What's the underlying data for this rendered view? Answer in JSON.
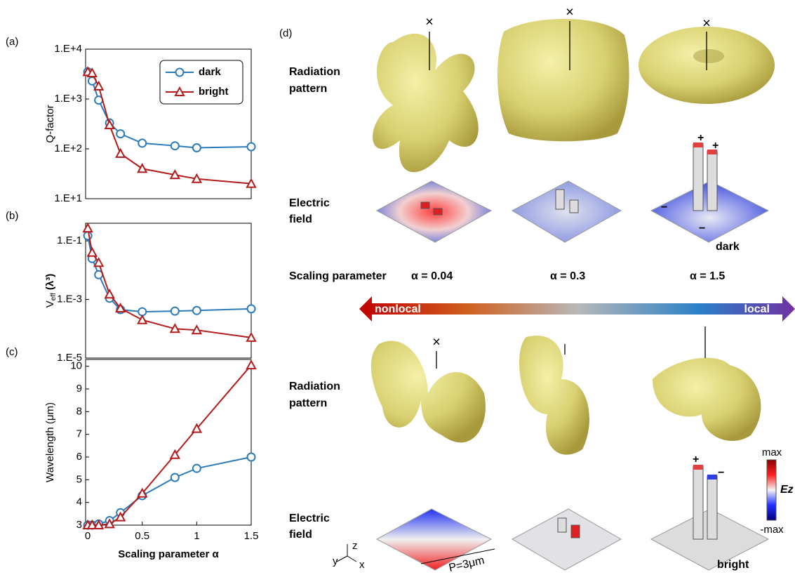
{
  "chart_data": [
    {
      "type": "line",
      "panel_label": "(a)",
      "y_label": "Q-factor",
      "x": [
        0,
        0.04,
        0.1,
        0.2,
        0.3,
        0.5,
        0.8,
        1.0,
        1.5
      ],
      "series": [
        {
          "name": "dark",
          "color": "#2b7bba",
          "marker": "circle",
          "values": [
            3500,
            2300,
            950,
            330,
            200,
            130,
            115,
            105,
            110
          ]
        },
        {
          "name": "bright",
          "color": "#b31b1b",
          "marker": "triangle",
          "values": [
            3500,
            3300,
            1800,
            300,
            80,
            40,
            30,
            25,
            20
          ]
        }
      ],
      "xlim": [
        -0.02,
        1.5
      ],
      "ylim": [
        10,
        10000
      ],
      "y_log": true,
      "yticks": [
        {
          "value": 10,
          "label": "1.E+1"
        },
        {
          "value": 100,
          "label": "1.E+2"
        },
        {
          "value": 1000,
          "label": "1.E+3"
        },
        {
          "value": 10000,
          "label": "1.E+4"
        }
      ],
      "legend": "upper right"
    },
    {
      "type": "line",
      "panel_label": "(b)",
      "y_label": {
        "main": "V",
        "sub": "eff",
        "rest": " (λ³)"
      },
      "x": [
        0,
        0.04,
        0.1,
        0.2,
        0.3,
        0.5,
        0.8,
        1.0,
        1.5
      ],
      "series": [
        {
          "color": "#2b7bba",
          "marker": "circle",
          "values": [
            0.15,
            0.025,
            0.007,
            0.0011,
            0.00045,
            0.00038,
            0.0004,
            0.00042,
            0.00048
          ]
        },
        {
          "color": "#b31b1b",
          "marker": "triangle",
          "values": [
            0.27,
            0.04,
            0.018,
            0.0015,
            0.0005,
            0.0002,
            0.0001,
            9e-05,
            5e-05
          ]
        }
      ],
      "xlim": [
        -0.02,
        1.5
      ],
      "ylim": [
        1e-05,
        0.4
      ],
      "y_log": true,
      "yticks": [
        {
          "value": 1e-05,
          "label": "1.E-5"
        },
        {
          "value": 0.001,
          "label": "1.E-3"
        },
        {
          "value": 0.1,
          "label": "1.E-1"
        }
      ]
    },
    {
      "type": "line",
      "panel_label": "(c)",
      "y_label": "Wavelength (μm)",
      "x_label": "Scaling parameter α",
      "x": [
        0,
        0.04,
        0.1,
        0.2,
        0.3,
        0.5,
        0.8,
        1.0,
        1.5
      ],
      "series": [
        {
          "color": "#2b7bba",
          "marker": "circle",
          "values": [
            3.0,
            3.0,
            3.05,
            3.2,
            3.55,
            4.3,
            5.1,
            5.5,
            6.0
          ]
        },
        {
          "color": "#b31b1b",
          "marker": "triangle",
          "values": [
            3.0,
            3.0,
            3.0,
            3.05,
            3.35,
            4.4,
            6.1,
            7.25,
            10.05
          ]
        }
      ],
      "xlim": [
        -0.02,
        1.5
      ],
      "ylim": [
        3,
        10.3
      ],
      "y_log": false,
      "xticks": [
        0,
        0.5,
        1,
        1.5
      ],
      "yticks": [
        3,
        4,
        5,
        6,
        7,
        8,
        9,
        10
      ]
    }
  ],
  "panel_d": {
    "label": "(d)",
    "upper": {
      "radiation_pattern": [
        "Radiation",
        "pattern"
      ],
      "electric_field": [
        "Electric",
        "field"
      ],
      "mode": "dark",
      "signs": [
        "+",
        "+",
        "−",
        "−"
      ]
    },
    "scaling": {
      "label": "Scaling parameter",
      "alphas": [
        "α = 0.04",
        "α = 0.3",
        "α = 1.5"
      ]
    },
    "arrow": {
      "left": "nonlocal",
      "right": "local"
    },
    "lower": {
      "radiation_pattern": [
        "Radiation",
        "pattern"
      ],
      "electric_field": [
        "Electric",
        "field"
      ],
      "mode": "bright",
      "signs": [
        "+",
        "−"
      ]
    },
    "crosses": [
      "×",
      "×",
      "×",
      "×"
    ],
    "colorbar": {
      "max": "max",
      "label": "Ez",
      "min": "-max"
    },
    "axes": {
      "z": "z",
      "y": "y",
      "x": "x"
    },
    "period": "P=3μm"
  }
}
